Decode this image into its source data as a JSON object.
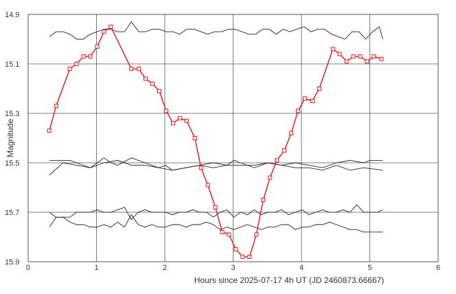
{
  "chart_data": {
    "type": "line",
    "title": "",
    "xlabel": "Hours since 2025-07-17 4h UT (JD 2460873.66667)",
    "ylabel": "Magnitude",
    "xlim": [
      0,
      6
    ],
    "ylim": [
      14.9,
      15.9
    ],
    "y_inverted": true,
    "grid": true,
    "x_ticks": [
      "0",
      "1",
      "2",
      "3",
      "4",
      "5",
      "6"
    ],
    "y_ticks": [
      "14.9",
      "15.1",
      "15.3",
      "15.5",
      "15.7",
      "15.9"
    ],
    "colors": {
      "target": "#ee1111",
      "comparison": "#222222",
      "grid": "#555555"
    },
    "series": [
      {
        "role": "target",
        "marker": "square",
        "x": [
          0.31,
          0.41,
          0.61,
          0.71,
          0.81,
          0.91,
          1.01,
          1.11,
          1.21,
          1.51,
          1.62,
          1.72,
          1.82,
          1.92,
          2.02,
          2.12,
          2.22,
          2.32,
          2.44,
          2.53,
          2.63,
          2.74,
          2.84,
          2.94,
          3.04,
          3.14,
          3.24,
          3.34,
          3.44,
          3.54,
          3.64,
          3.75,
          3.85,
          3.95,
          4.05,
          4.16,
          4.26,
          4.46,
          4.56,
          4.66,
          4.76,
          4.86,
          4.96,
          5.06,
          5.17
        ],
        "y": [
          15.37,
          15.27,
          15.12,
          15.1,
          15.07,
          15.07,
          15.03,
          14.97,
          14.95,
          15.12,
          15.12,
          15.16,
          15.18,
          15.21,
          15.29,
          15.34,
          15.32,
          15.33,
          15.4,
          15.52,
          15.59,
          15.68,
          15.78,
          15.79,
          15.85,
          15.88,
          15.88,
          15.79,
          15.65,
          15.56,
          15.49,
          15.45,
          15.38,
          15.29,
          15.24,
          15.25,
          15.2,
          15.04,
          15.06,
          15.09,
          15.07,
          15.07,
          15.09,
          15.07,
          15.08
        ]
      },
      {
        "role": "comparison",
        "x": [
          0.31,
          0.41,
          0.51,
          0.61,
          0.71,
          0.81,
          0.91,
          1.01,
          1.11,
          1.21,
          1.31,
          1.41,
          1.51,
          1.62,
          1.72,
          1.82,
          1.92,
          2.02,
          2.12,
          2.22,
          2.32,
          2.43,
          2.53,
          2.63,
          2.73,
          2.83,
          2.93,
          3.03,
          3.13,
          3.23,
          3.33,
          3.43,
          3.53,
          3.63,
          3.73,
          3.83,
          3.93,
          4.04,
          4.14,
          4.24,
          4.34,
          4.44,
          4.54,
          4.64,
          4.74,
          4.84,
          4.94,
          5.04,
          5.14,
          5.19
        ],
        "y": [
          14.99,
          14.97,
          14.97,
          14.98,
          15.0,
          15.0,
          14.98,
          14.97,
          14.96,
          14.96,
          14.97,
          14.97,
          14.93,
          14.97,
          14.97,
          14.96,
          14.96,
          14.97,
          14.97,
          14.98,
          14.96,
          14.96,
          14.97,
          14.98,
          14.97,
          14.97,
          14.96,
          14.96,
          14.97,
          14.98,
          14.98,
          14.96,
          14.96,
          14.98,
          14.96,
          14.97,
          14.96,
          14.95,
          14.97,
          14.96,
          14.96,
          14.98,
          14.99,
          15.0,
          14.97,
          14.97,
          15.0,
          14.97,
          14.95,
          15.0
        ]
      },
      {
        "role": "comparison",
        "x": [
          0.31,
          0.61,
          0.91,
          1.01,
          1.11,
          1.21,
          1.31,
          1.51,
          1.71,
          1.81,
          1.91,
          2.01,
          2.11,
          2.31,
          2.51,
          2.71,
          2.91,
          3.01,
          3.11,
          3.31,
          3.51,
          3.71,
          3.91,
          4.11,
          4.31,
          4.51,
          4.71,
          4.91,
          5.01,
          5.19
        ],
        "y": [
          15.49,
          15.49,
          15.52,
          15.5,
          15.48,
          15.5,
          15.51,
          15.48,
          15.5,
          15.51,
          15.52,
          15.51,
          15.53,
          15.52,
          15.51,
          15.5,
          15.51,
          15.49,
          15.5,
          15.52,
          15.5,
          15.51,
          15.5,
          15.51,
          15.52,
          15.5,
          15.49,
          15.5,
          15.49,
          15.49
        ]
      },
      {
        "role": "comparison",
        "x": [
          0.31,
          0.51,
          0.71,
          0.91,
          1.11,
          1.31,
          1.51,
          1.71,
          1.91,
          2.11,
          2.31,
          2.51,
          2.71,
          2.91,
          3.11,
          3.31,
          3.51,
          3.71,
          3.91,
          4.11,
          4.31,
          4.51,
          4.71,
          4.91,
          5.19
        ],
        "y": [
          15.55,
          15.5,
          15.51,
          15.52,
          15.5,
          15.49,
          15.51,
          15.51,
          15.52,
          15.53,
          15.52,
          15.51,
          15.52,
          15.51,
          15.51,
          15.51,
          15.5,
          15.51,
          15.52,
          15.52,
          15.53,
          15.51,
          15.53,
          15.52,
          15.53
        ]
      },
      {
        "role": "comparison",
        "x": [
          0.31,
          0.41,
          0.51,
          0.61,
          0.71,
          0.81,
          0.91,
          1.01,
          1.11,
          1.21,
          1.31,
          1.41,
          1.51,
          1.61,
          1.71,
          1.81,
          1.91,
          2.01,
          2.11,
          2.21,
          2.31,
          2.41,
          2.51,
          2.61,
          2.71,
          2.81,
          2.91,
          3.01,
          3.11,
          3.21,
          3.31,
          3.41,
          3.51,
          3.61,
          3.71,
          3.81,
          3.91,
          4.01,
          4.11,
          4.21,
          4.31,
          4.41,
          4.51,
          4.61,
          4.71,
          4.81,
          4.91,
          5.01,
          5.11,
          5.19
        ],
        "y": [
          15.7,
          15.72,
          15.72,
          15.72,
          15.7,
          15.7,
          15.7,
          15.69,
          15.7,
          15.7,
          15.69,
          15.68,
          15.73,
          15.7,
          15.69,
          15.7,
          15.7,
          15.7,
          15.71,
          15.7,
          15.7,
          15.69,
          15.7,
          15.7,
          15.72,
          15.7,
          15.69,
          15.72,
          15.7,
          15.71,
          15.69,
          15.71,
          15.7,
          15.7,
          15.69,
          15.71,
          15.7,
          15.69,
          15.71,
          15.7,
          15.69,
          15.7,
          15.7,
          15.69,
          15.7,
          15.67,
          15.7,
          15.7,
          15.7,
          15.69
        ]
      },
      {
        "role": "comparison",
        "x": [
          0.31,
          0.41,
          0.51,
          0.61,
          0.71,
          0.81,
          0.91,
          1.01,
          1.11,
          1.21,
          1.31,
          1.41,
          1.51,
          1.61,
          1.71,
          1.81,
          1.91,
          2.01,
          2.11,
          2.21,
          2.31,
          2.41,
          2.51,
          2.61,
          2.71,
          2.81,
          2.91,
          3.01,
          3.11,
          3.21,
          3.31,
          3.41,
          3.51,
          3.61,
          3.71,
          3.81,
          3.91,
          4.01,
          4.11,
          4.21,
          4.31,
          4.41,
          4.51,
          4.61,
          4.71,
          4.81,
          4.91,
          5.01,
          5.11,
          5.19
        ],
        "y": [
          15.76,
          15.72,
          15.72,
          15.74,
          15.75,
          15.75,
          15.76,
          15.76,
          15.75,
          15.76,
          15.74,
          15.76,
          15.71,
          15.75,
          15.76,
          15.75,
          15.76,
          15.76,
          15.75,
          15.75,
          15.76,
          15.75,
          15.75,
          15.74,
          15.75,
          15.77,
          15.76,
          15.77,
          15.76,
          15.75,
          15.76,
          15.77,
          15.76,
          15.76,
          15.75,
          15.75,
          15.77,
          15.76,
          15.76,
          15.75,
          15.75,
          15.74,
          15.75,
          15.76,
          15.77,
          15.77,
          15.78,
          15.78,
          15.78,
          15.78
        ]
      }
    ]
  }
}
